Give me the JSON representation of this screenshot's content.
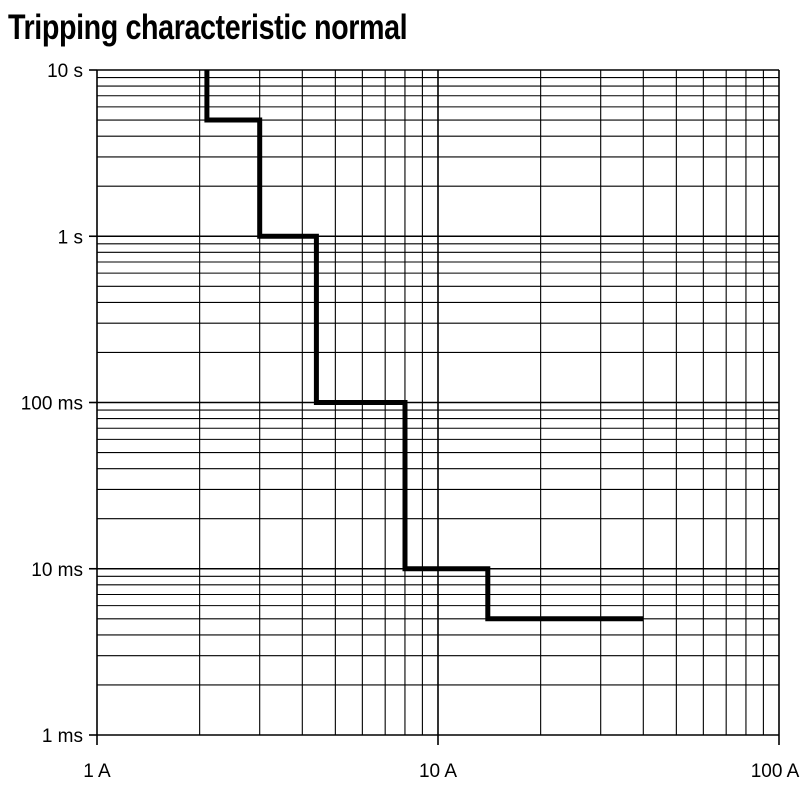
{
  "chart_data": {
    "type": "line",
    "title": "Tripping characteristic normal",
    "x_scale": "log",
    "y_scale": "log",
    "xlim": [
      1,
      100
    ],
    "ylim": [
      0.001,
      10
    ],
    "x_unit": "A",
    "y_unit": "s",
    "grid": true,
    "x_ticks": [
      {
        "value": 1,
        "label": "1 A"
      },
      {
        "value": 10,
        "label": "10 A"
      },
      {
        "value": 100,
        "label": "100 A"
      }
    ],
    "y_ticks": [
      {
        "value": 10,
        "label": "10 s"
      },
      {
        "value": 1,
        "label": "1 s"
      },
      {
        "value": 0.1,
        "label": "100 ms"
      },
      {
        "value": 0.01,
        "label": "10 ms"
      },
      {
        "value": 0.001,
        "label": "1 ms"
      }
    ],
    "series": [
      {
        "color": "#000000",
        "points": [
          [
            2.1,
            10
          ],
          [
            2.1,
            5
          ],
          [
            3,
            5
          ],
          [
            3,
            1
          ],
          [
            4.4,
            1
          ],
          [
            4.4,
            0.1
          ],
          [
            8,
            0.1
          ],
          [
            8,
            0.01
          ],
          [
            14,
            0.01
          ],
          [
            14,
            0.005
          ],
          [
            40,
            0.005
          ]
        ]
      }
    ]
  }
}
